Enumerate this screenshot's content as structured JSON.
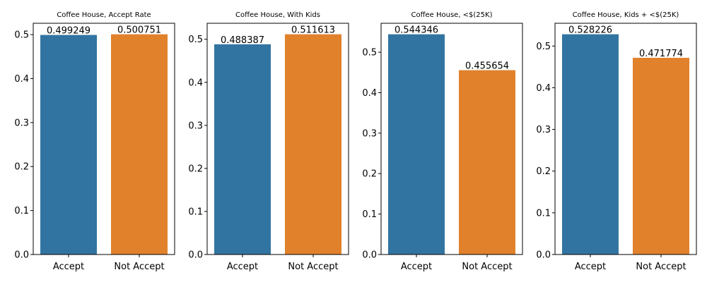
{
  "colors": {
    "accept": "#3274a1",
    "not_accept": "#e1812c"
  },
  "chart_data": [
    {
      "type": "bar",
      "title": "Coffee House, Accept Rate",
      "categories": [
        "Accept",
        "Not Accept"
      ],
      "values": [
        0.499249,
        0.500751
      ],
      "value_labels": [
        "0.499249",
        "0.500751"
      ],
      "yticks": [
        0.0,
        0.1,
        0.2,
        0.3,
        0.4,
        0.5
      ],
      "ytick_labels": [
        "0.0",
        "0.1",
        "0.2",
        "0.3",
        "0.4",
        "0.5"
      ],
      "ylim": [
        0,
        0.5258
      ]
    },
    {
      "type": "bar",
      "title": "Coffee House, With Kids",
      "categories": [
        "Accept",
        "Not Accept"
      ],
      "values": [
        0.488387,
        0.511613
      ],
      "value_labels": [
        "0.488387",
        "0.511613"
      ],
      "yticks": [
        0.0,
        0.1,
        0.2,
        0.3,
        0.4,
        0.5
      ],
      "ytick_labels": [
        "0.0",
        "0.1",
        "0.2",
        "0.3",
        "0.4",
        "0.5"
      ],
      "ylim": [
        0,
        0.5372
      ]
    },
    {
      "type": "bar",
      "title": "Coffee House, <$(25K)",
      "categories": [
        "Accept",
        "Not Accept"
      ],
      "values": [
        0.544346,
        0.455654
      ],
      "value_labels": [
        "0.544346",
        "0.455654"
      ],
      "yticks": [
        0.0,
        0.1,
        0.2,
        0.3,
        0.4,
        0.5
      ],
      "ytick_labels": [
        "0.0",
        "0.1",
        "0.2",
        "0.3",
        "0.4",
        "0.5"
      ],
      "ylim": [
        0,
        0.5716
      ]
    },
    {
      "type": "bar",
      "title": "Coffee House, Kids + <$(25K)",
      "categories": [
        "Accept",
        "Not Accept"
      ],
      "values": [
        0.528226,
        0.471774
      ],
      "value_labels": [
        "0.528226",
        "0.471774"
      ],
      "yticks": [
        0.0,
        0.1,
        0.2,
        0.3,
        0.4,
        0.5
      ],
      "ytick_labels": [
        "0.0",
        "0.1",
        "0.2",
        "0.3",
        "0.4",
        "0.5"
      ],
      "ylim": [
        0,
        0.5546
      ]
    }
  ]
}
